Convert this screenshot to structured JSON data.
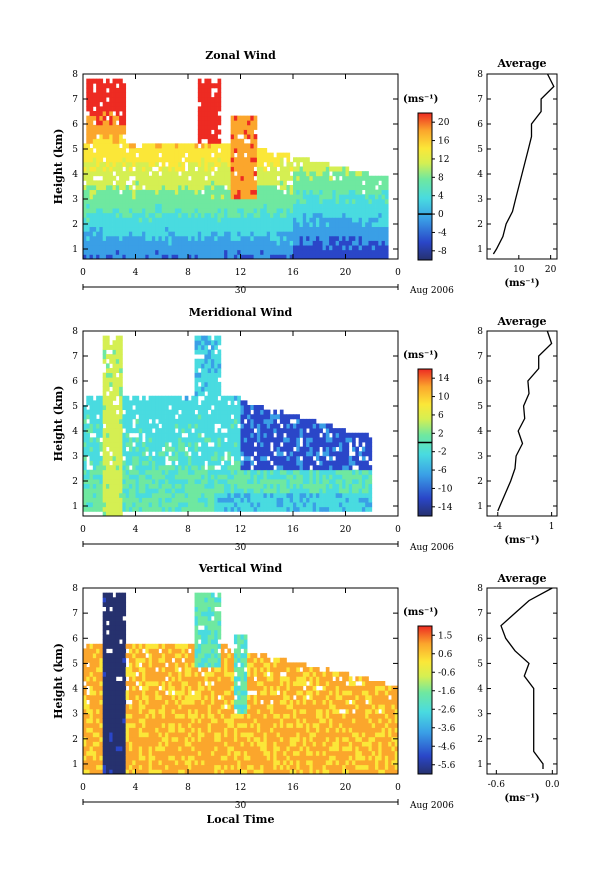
{
  "chart_data": [
    {
      "type": "heatmap",
      "title": "Zonal Wind",
      "ylabel": "Height (km)",
      "xlabel": "",
      "x_ticks": [
        "0",
        "4",
        "8",
        "12",
        "16",
        "20",
        "0"
      ],
      "xlim": [
        0,
        24
      ],
      "y_ticks": [
        "1",
        "2",
        "3",
        "4",
        "5",
        "6",
        "7",
        "8"
      ],
      "ylim": [
        0.6,
        8
      ],
      "date_day": "30",
      "date_month": "Aug 2006",
      "colorbar": {
        "unit": "(ms⁻¹)",
        "tick_labels": [
          "20",
          "16",
          "12",
          "8",
          "4",
          "0",
          "-4",
          "-8"
        ],
        "range": [
          -10,
          22
        ],
        "zero_contour": 0
      },
      "average_profile": {
        "title": "Average",
        "xlabel": "(ms⁻¹)",
        "x_ticks": [
          "10",
          "20"
        ],
        "xlim": [
          0,
          22
        ],
        "heights": [
          0.8,
          1.0,
          1.5,
          2.0,
          2.5,
          3.0,
          3.5,
          4.0,
          4.5,
          5.0,
          5.5,
          6.0,
          6.5,
          7.0,
          7.5,
          8.0
        ],
        "values": [
          2,
          3,
          5,
          6,
          8,
          9,
          10,
          11,
          12,
          13,
          14,
          14,
          17,
          17,
          21,
          19
        ]
      }
    },
    {
      "type": "heatmap",
      "title": "Meridional Wind",
      "ylabel": "Height (km)",
      "xlabel": "",
      "x_ticks": [
        "0",
        "4",
        "8",
        "12",
        "16",
        "20",
        "0"
      ],
      "xlim": [
        0,
        24
      ],
      "y_ticks": [
        "1",
        "2",
        "3",
        "4",
        "5",
        "6",
        "7",
        "8"
      ],
      "ylim": [
        0.6,
        8
      ],
      "date_day": "30",
      "date_month": "Aug 2006",
      "colorbar": {
        "unit": "(ms⁻¹)",
        "tick_labels": [
          "14",
          "10",
          "6",
          "2",
          "-2",
          "-6",
          "-10",
          "-14"
        ],
        "range": [
          -16,
          16
        ],
        "zero_contour": 0
      },
      "average_profile": {
        "title": "Average",
        "xlabel": "(ms⁻¹)",
        "x_ticks": [
          "-4",
          "1"
        ],
        "xlim": [
          -5,
          1.5
        ],
        "heights": [
          0.8,
          1.0,
          1.5,
          2.0,
          2.5,
          3.0,
          3.5,
          4.0,
          4.5,
          5.0,
          5.5,
          6.0,
          6.5,
          7.0,
          7.5,
          8.0
        ],
        "values": [
          -4,
          -3.8,
          -3.3,
          -2.8,
          -2.4,
          -2.3,
          -1.7,
          -2.1,
          -1.5,
          -1.6,
          -1.1,
          -1.2,
          -0.2,
          -0.2,
          1.0,
          0.6
        ]
      }
    },
    {
      "type": "heatmap",
      "title": "Vertical Wind",
      "ylabel": "Height (km)",
      "xlabel": "Local Time",
      "x_ticks": [
        "0",
        "4",
        "8",
        "12",
        "16",
        "20",
        "0"
      ],
      "xlim": [
        0,
        24
      ],
      "y_ticks": [
        "1",
        "2",
        "3",
        "4",
        "5",
        "6",
        "7",
        "8"
      ],
      "ylim": [
        0.6,
        8
      ],
      "date_day": "30",
      "date_month": "Aug 2006",
      "colorbar": {
        "unit": "(ms⁻¹)",
        "tick_labels": [
          "1.5",
          "0.6",
          "-0.6",
          "-1.6",
          "-2.6",
          "-3.6",
          "-4.6",
          "-5.6"
        ],
        "range": [
          -6,
          2
        ]
      },
      "average_profile": {
        "title": "Average",
        "xlabel": "(ms⁻¹)",
        "x_ticks": [
          "-0.6",
          "0.0"
        ],
        "xlim": [
          -0.7,
          0.05
        ],
        "heights": [
          0.8,
          1.0,
          1.5,
          2.0,
          2.5,
          3.0,
          3.5,
          4.0,
          4.5,
          5.0,
          5.5,
          6.0,
          6.5,
          7.0,
          7.5,
          8.0
        ],
        "values": [
          -0.1,
          -0.1,
          -0.2,
          -0.2,
          -0.2,
          -0.2,
          -0.2,
          -0.2,
          -0.3,
          -0.25,
          -0.4,
          -0.5,
          -0.55,
          -0.4,
          -0.25,
          0.0
        ]
      }
    }
  ]
}
